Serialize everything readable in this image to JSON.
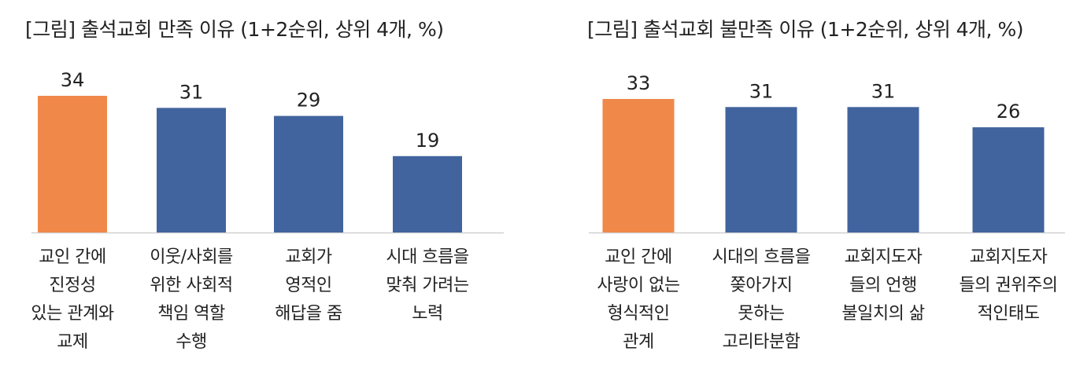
{
  "chart_data": [
    {
      "type": "bar",
      "title": "[그림] 출석교회 만족 이유 (1+2순위, 상위 4개, %)",
      "categories": [
        "교인 간에\n진정성\n있는 관계와\n교제",
        "이웃/사회를\n위한 사회적\n책임 역할\n수행",
        "교회가\n영적인\n해답을 줌",
        "시대 흐름을\n맞춰 가려는\n노력"
      ],
      "values": [
        34,
        31,
        29,
        19
      ],
      "highlight_index": 0,
      "xlabel": "",
      "ylabel": "",
      "ylim": [
        0,
        34
      ],
      "grid": false,
      "legend": "none"
    },
    {
      "type": "bar",
      "title": "[그림] 출석교회 불만족 이유 (1+2순위, 상위 4개, %)",
      "categories": [
        "교인 간에\n사랑이 없는\n형식적인\n관계",
        "시대의 흐름을\n쫒아가지\n못하는\n고리타분함",
        "교회지도자\n들의 언행\n불일치의 삶",
        "교회지도자\n들의 권위주의\n적인태도"
      ],
      "values": [
        33,
        31,
        31,
        26
      ],
      "highlight_index": 0,
      "xlabel": "",
      "ylabel": "",
      "ylim": [
        0,
        33
      ],
      "grid": false,
      "legend": "none"
    }
  ],
  "colors": {
    "highlight": "#F0884A",
    "bar": "#41649E",
    "axis": "#d0d0d0"
  }
}
